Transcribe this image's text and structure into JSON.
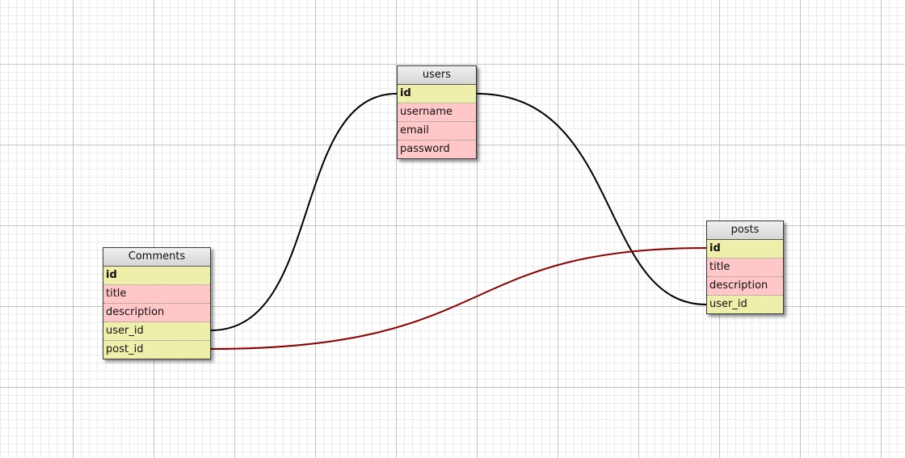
{
  "diagram": {
    "tables": {
      "users": {
        "name": "users",
        "rows": [
          {
            "label": "id",
            "kind": "primary-key"
          },
          {
            "label": "username",
            "kind": "field"
          },
          {
            "label": "email",
            "kind": "field"
          },
          {
            "label": "password",
            "kind": "field"
          }
        ]
      },
      "comments": {
        "name": "Comments",
        "rows": [
          {
            "label": "id",
            "kind": "primary-key"
          },
          {
            "label": "title",
            "kind": "field"
          },
          {
            "label": "description",
            "kind": "field"
          },
          {
            "label": "user_id",
            "kind": "foreign-key"
          },
          {
            "label": "post_id",
            "kind": "foreign-key"
          }
        ]
      },
      "posts": {
        "name": "posts",
        "rows": [
          {
            "label": "id",
            "kind": "primary-key"
          },
          {
            "label": "title",
            "kind": "field"
          },
          {
            "label": "description",
            "kind": "field"
          },
          {
            "label": "user_id",
            "kind": "foreign-key"
          }
        ]
      }
    },
    "relations": [
      {
        "from": "Comments.user_id",
        "to": "users.id",
        "color": "#000000"
      },
      {
        "from": "posts.user_id",
        "to": "users.id",
        "color": "#000000"
      },
      {
        "from": "Comments.post_id",
        "to": "posts.id",
        "color": "#8b0000"
      }
    ],
    "colors": {
      "key_row": "#efefac",
      "field_row": "#ffc7c7",
      "header": "#dcdcdc",
      "grid_major": "#c4c4c4",
      "grid_minor": "#ececec"
    }
  }
}
